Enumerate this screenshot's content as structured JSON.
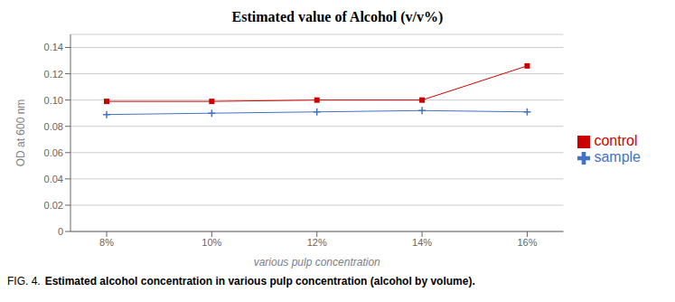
{
  "chart_data": {
    "type": "line",
    "title": "Estimated value of Alcohol (v/v%)",
    "x_label": "various pulp concentration",
    "y_label": "OD at 600 nm",
    "categories": [
      "8%",
      "10%",
      "12%",
      "14%",
      "16%"
    ],
    "series": [
      {
        "name": "sample",
        "color": "#4472C4",
        "marker": "plus",
        "values": [
          0.089,
          0.09,
          0.091,
          0.092,
          0.091
        ]
      },
      {
        "name": "control",
        "color": "#CC0000",
        "marker": "square",
        "values": [
          0.099,
          0.099,
          0.1,
          0.1,
          0.126
        ]
      }
    ],
    "ylim": [
      0,
      0.15
    ],
    "yticks": [
      0,
      0.02,
      0.04,
      0.06,
      0.08,
      {
        "value": 0.1,
        "label": "0.10"
      },
      0.12,
      0.14
    ],
    "grid": true,
    "legend": "right",
    "annotations": [
      "FIG. 4.",
      "Estimated alcohol concentration in various pulp concentration (alcohol by volume)."
    ]
  }
}
